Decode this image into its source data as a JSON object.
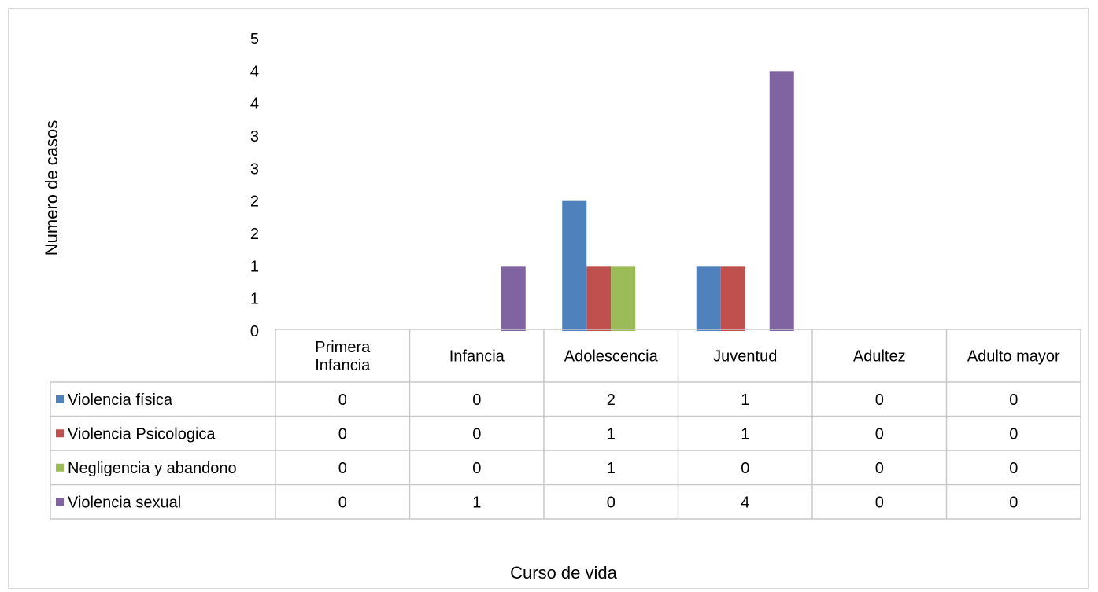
{
  "chart_data": {
    "type": "bar",
    "xlabel": "Curso de vida",
    "ylabel": "Numero de casos",
    "ylim": [
      0,
      4.5
    ],
    "yticks": [
      0,
      0.5,
      1,
      1.5,
      2,
      2.5,
      3,
      3.5,
      4,
      4.5
    ],
    "ytick_labels": [
      "0",
      "1",
      "1",
      "2",
      "2",
      "3",
      "3",
      "4",
      "4",
      "5"
    ],
    "categories": [
      [
        "Primera",
        "Infancia"
      ],
      [
        "Infancia"
      ],
      [
        "Adolescencia"
      ],
      [
        "Juventud"
      ],
      [
        "Adultez"
      ],
      [
        "Adulto mayor"
      ]
    ],
    "legend": "data table below the plot",
    "series": [
      {
        "name": "Violencia física",
        "color": "#4f81bd",
        "values": [
          0,
          0,
          2,
          1,
          0,
          0
        ]
      },
      {
        "name": "Violencia Psicologica",
        "color": "#c0504d",
        "values": [
          0,
          0,
          1,
          1,
          0,
          0
        ]
      },
      {
        "name": "Negligencia y abandono",
        "color": "#9bbb59",
        "values": [
          0,
          0,
          1,
          0,
          0,
          0
        ]
      },
      {
        "name": "Violencia sexual",
        "color": "#8064a2",
        "values": [
          0,
          1,
          0,
          4,
          0,
          0
        ]
      }
    ],
    "grid": false
  }
}
